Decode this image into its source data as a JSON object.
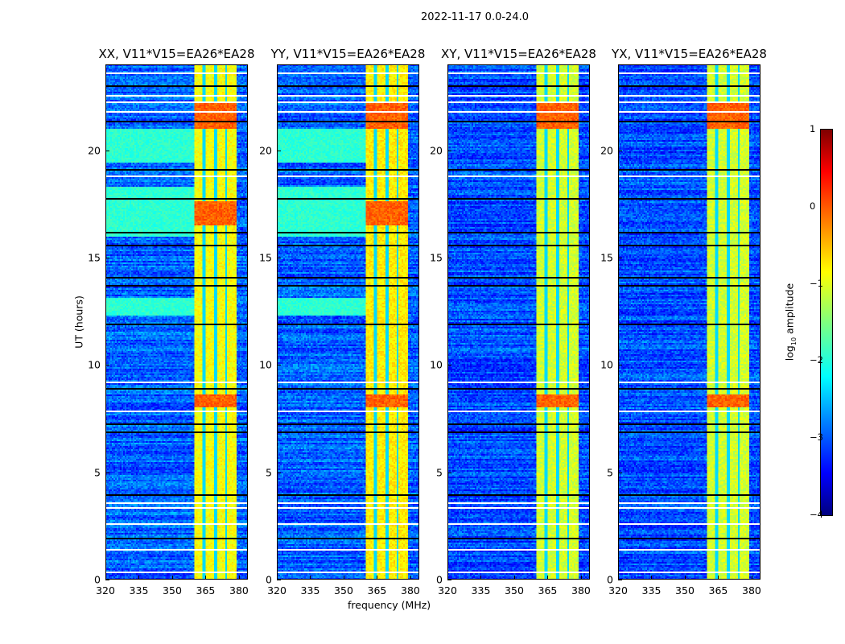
{
  "chart_data": {
    "type": "heatmap",
    "suptitle": "2022-11-17 0.0-24.0",
    "xlabel": "frequency (MHz)",
    "ylabel": "UT (hours)",
    "xlim": [
      320,
      384
    ],
    "ylim": [
      0,
      24
    ],
    "xticks": [
      "320",
      "335",
      "350",
      "365",
      "380"
    ],
    "xtick_values": [
      320,
      335,
      350,
      365,
      380
    ],
    "yticks": [
      "0",
      "5",
      "10",
      "15",
      "20"
    ],
    "ytick_values": [
      0,
      5,
      10,
      15,
      20
    ],
    "colorbar": {
      "label_main": "log",
      "label_sub": "10",
      "label_rest": " amplitude",
      "clim": [
        -4,
        1
      ],
      "ticks": [
        "1",
        "0",
        "−1",
        "−2",
        "−3",
        "−4"
      ],
      "tick_values": [
        1,
        0,
        -1,
        -2,
        -3,
        -4
      ],
      "colormap": "jet"
    },
    "panels": [
      {
        "title": "XX, V11*V15=EA26*EA28",
        "background": -2.9,
        "band_level": -0.9,
        "green_rows": true
      },
      {
        "title": "YY, V11*V15=EA26*EA28",
        "background": -2.9,
        "band_level": -0.8,
        "green_rows": true
      },
      {
        "title": "XY, V11*V15=EA26*EA28",
        "background": -3.0,
        "band_level": -1.1,
        "green_rows": false
      },
      {
        "title": "YX, V11*V15=EA26*EA28",
        "background": -3.0,
        "band_level": -1.1,
        "green_rows": false
      }
    ],
    "strong_band_mhz": [
      360,
      379
    ],
    "flagged_hours_white": [
      0.4,
      1.4,
      2.6,
      3.4,
      3.6,
      7.9,
      9.2,
      18.8,
      21.8,
      22.3,
      22.6,
      23.6
    ],
    "flagged_hours_black": [
      1.95,
      4.0,
      6.9,
      7.3,
      8.9,
      11.9,
      13.7,
      14.1,
      15.6,
      16.2,
      17.8,
      19.1,
      21.4,
      23.0
    ]
  }
}
